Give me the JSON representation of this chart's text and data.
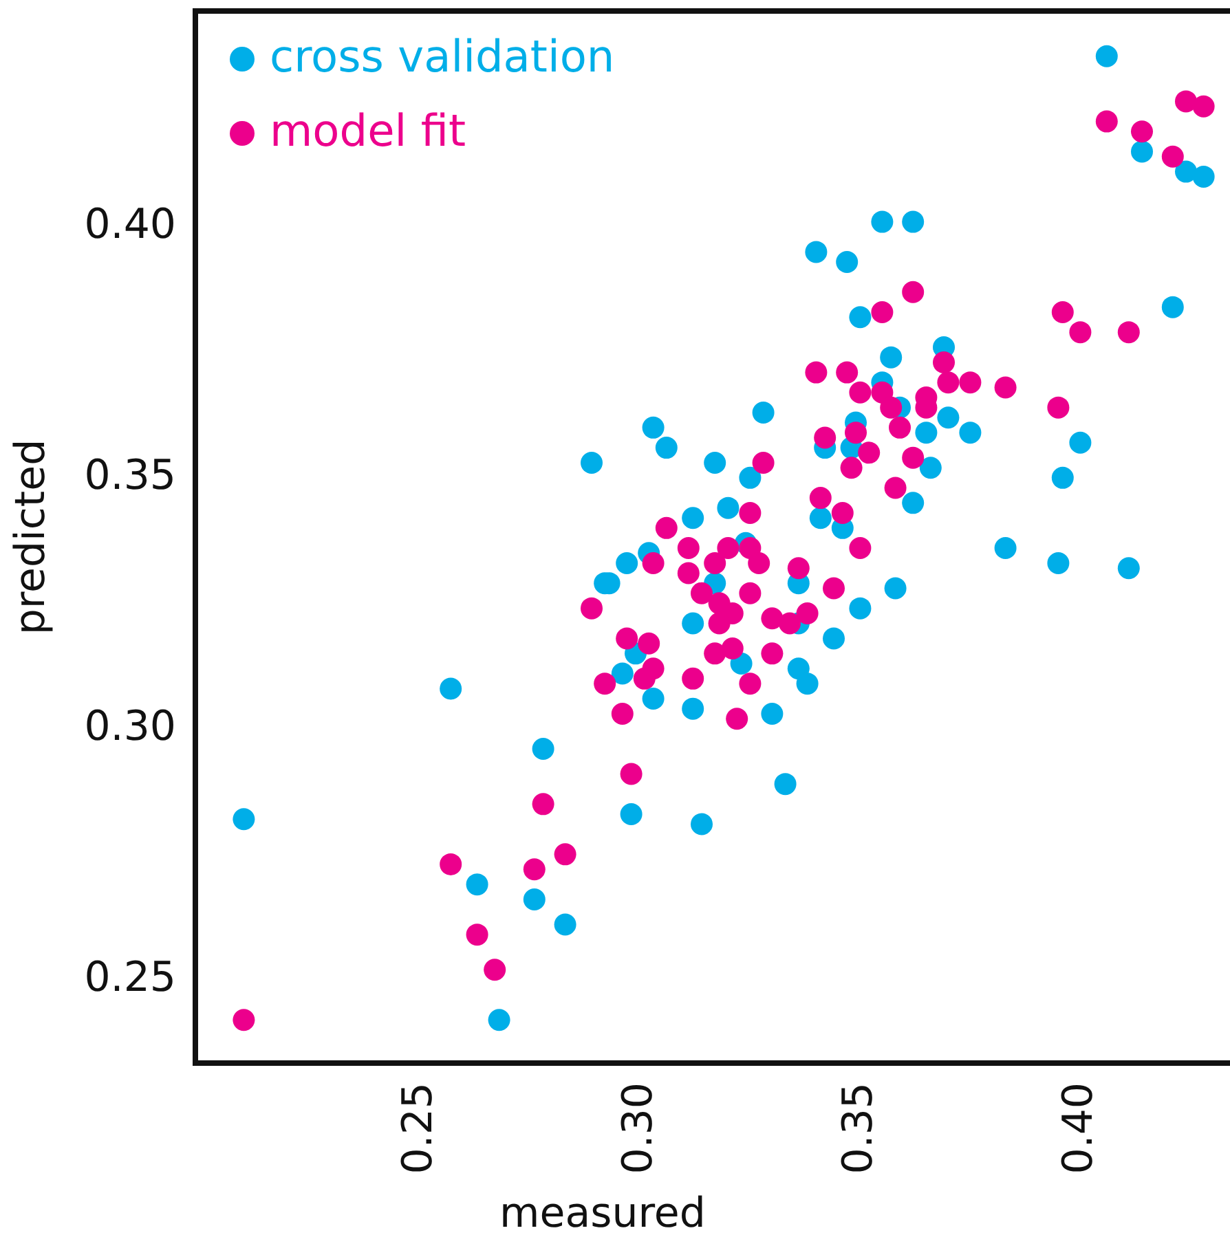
{
  "chart_data": {
    "type": "scatter",
    "xlabel": "measured",
    "ylabel": "predicted",
    "xlim": [
      0.199,
      0.434
    ],
    "ylim": [
      0.2334,
      0.443
    ],
    "xticks": [
      0.25,
      {
        "value": 0.3,
        "label": "0.30"
      },
      0.35,
      {
        "value": 0.4,
        "label": "0.40"
      }
    ],
    "yticks": [
      0.25,
      {
        "value": 0.3,
        "label": "0.30"
      },
      0.35,
      {
        "value": 0.4,
        "label": "0.40"
      }
    ],
    "grid": false,
    "legend": "top left",
    "marker": "circle",
    "series": [
      {
        "name": "cross validation",
        "color": "#00aee8",
        "x": [
          0.355,
          0.362,
          0.34,
          0.347,
          0.35,
          0.357,
          0.355,
          0.359,
          0.349,
          0.348,
          0.342,
          0.365,
          0.37,
          0.375,
          0.366,
          0.362,
          0.421,
          0.4,
          0.396,
          0.383,
          0.395,
          0.411,
          0.328,
          0.303,
          0.306,
          0.317,
          0.325,
          0.312,
          0.32,
          0.297,
          0.293,
          0.302,
          0.317,
          0.324,
          0.336,
          0.35,
          0.358,
          0.341,
          0.346,
          0.369,
          0.312,
          0.344,
          0.406,
          0.414,
          0.424,
          0.428,
          0.289,
          0.292,
          0.257,
          0.21,
          0.278,
          0.298,
          0.263,
          0.276,
          0.283,
          0.268,
          0.303,
          0.299,
          0.296,
          0.312,
          0.323,
          0.33,
          0.336,
          0.338,
          0.333,
          0.314,
          0.336
        ],
        "values": [
          0.401,
          0.401,
          0.395,
          0.393,
          0.382,
          0.374,
          0.369,
          0.364,
          0.361,
          0.356,
          0.356,
          0.359,
          0.362,
          0.359,
          0.352,
          0.345,
          0.384,
          0.357,
          0.35,
          0.336,
          0.333,
          0.332,
          0.363,
          0.36,
          0.356,
          0.353,
          0.35,
          0.342,
          0.344,
          0.333,
          0.329,
          0.335,
          0.329,
          0.337,
          0.329,
          0.324,
          0.328,
          0.342,
          0.34,
          0.376,
          0.321,
          0.318,
          0.434,
          0.415,
          0.411,
          0.41,
          0.353,
          0.329,
          0.308,
          0.282,
          0.296,
          0.283,
          0.269,
          0.266,
          0.261,
          0.242,
          0.306,
          0.315,
          0.311,
          0.304,
          0.313,
          0.303,
          0.312,
          0.309,
          0.289,
          0.281,
          0.321
        ]
      },
      {
        "name": "model fit",
        "color": "#ec008c",
        "x": [
          0.362,
          0.355,
          0.34,
          0.347,
          0.35,
          0.355,
          0.357,
          0.359,
          0.365,
          0.365,
          0.369,
          0.37,
          0.375,
          0.383,
          0.396,
          0.4,
          0.411,
          0.395,
          0.349,
          0.342,
          0.352,
          0.348,
          0.362,
          0.358,
          0.341,
          0.346,
          0.35,
          0.328,
          0.325,
          0.306,
          0.311,
          0.32,
          0.325,
          0.327,
          0.317,
          0.303,
          0.311,
          0.314,
          0.325,
          0.318,
          0.321,
          0.336,
          0.344,
          0.33,
          0.338,
          0.334,
          0.297,
          0.302,
          0.321,
          0.33,
          0.406,
          0.414,
          0.424,
          0.428,
          0.421,
          0.289,
          0.292,
          0.301,
          0.303,
          0.312,
          0.296,
          0.298,
          0.278,
          0.257,
          0.276,
          0.283,
          0.263,
          0.267,
          0.21,
          0.318,
          0.325,
          0.322,
          0.317
        ],
        "values": [
          0.387,
          0.383,
          0.371,
          0.371,
          0.367,
          0.367,
          0.364,
          0.36,
          0.366,
          0.364,
          0.373,
          0.369,
          0.369,
          0.368,
          0.383,
          0.379,
          0.379,
          0.364,
          0.359,
          0.358,
          0.355,
          0.352,
          0.354,
          0.348,
          0.346,
          0.343,
          0.336,
          0.353,
          0.343,
          0.34,
          0.336,
          0.336,
          0.336,
          0.333,
          0.333,
          0.333,
          0.331,
          0.327,
          0.327,
          0.325,
          0.323,
          0.332,
          0.328,
          0.322,
          0.323,
          0.321,
          0.318,
          0.317,
          0.316,
          0.315,
          0.421,
          0.419,
          0.425,
          0.424,
          0.414,
          0.324,
          0.309,
          0.31,
          0.312,
          0.31,
          0.303,
          0.291,
          0.285,
          0.273,
          0.272,
          0.275,
          0.259,
          0.252,
          0.242,
          0.321,
          0.309,
          0.302,
          0.315
        ]
      }
    ]
  }
}
